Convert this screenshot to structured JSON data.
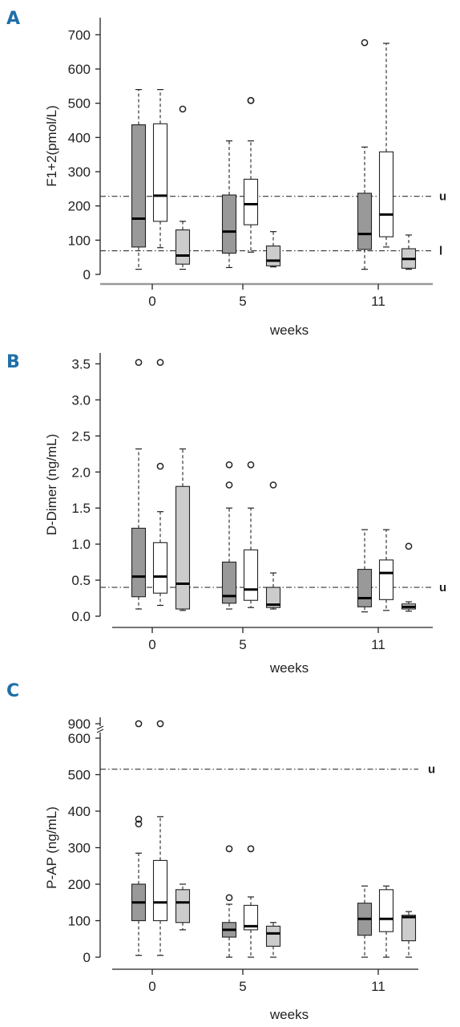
{
  "chart_data": [
    {
      "type": "box",
      "panel_label": "A",
      "xlabel": "weeks",
      "ylabel": "F1+2(pmol/L)",
      "categories": [
        "0",
        "5",
        "11"
      ],
      "ylim": [
        0,
        750
      ],
      "yticks": [
        0,
        100,
        200,
        300,
        400,
        500,
        600,
        700
      ],
      "reference_lines": [
        {
          "label": "u",
          "value": 228,
          "style": "dash-dot"
        },
        {
          "label": "l",
          "value": 69,
          "style": "dash-dot"
        }
      ],
      "series": [
        {
          "fill": "#999999",
          "boxes": [
            {
              "whislo": 15,
              "q1": 80,
              "med": 163,
              "q3": 437,
              "whishi": 540,
              "fliers": []
            },
            {
              "whislo": 20,
              "q1": 62,
              "med": 125,
              "q3": 232,
              "whishi": 390,
              "fliers": []
            },
            {
              "whislo": 15,
              "q1": 73,
              "med": 118,
              "q3": 237,
              "whishi": 372,
              "fliers": [
                677
              ]
            }
          ]
        },
        {
          "fill": "#ffffff",
          "boxes": [
            {
              "whislo": 78,
              "q1": 155,
              "med": 230,
              "q3": 440,
              "whishi": 540,
              "fliers": []
            },
            {
              "whislo": 65,
              "q1": 145,
              "med": 205,
              "q3": 278,
              "whishi": 390,
              "fliers": [
                508,
                508
              ]
            },
            {
              "whislo": 80,
              "q1": 110,
              "med": 175,
              "q3": 358,
              "whishi": 675,
              "fliers": []
            }
          ]
        },
        {
          "fill": "#cccccc",
          "boxes": [
            {
              "whislo": 15,
              "q1": 30,
              "med": 55,
              "q3": 130,
              "whishi": 155,
              "fliers": [
                483
              ]
            },
            {
              "whislo": 22,
              "q1": 25,
              "med": 40,
              "q3": 83,
              "whishi": 125,
              "fliers": []
            },
            {
              "whislo": 15,
              "q1": 18,
              "med": 45,
              "q3": 75,
              "whishi": 115,
              "fliers": []
            }
          ]
        }
      ]
    },
    {
      "type": "box",
      "panel_label": "B",
      "xlabel": "weeks",
      "ylabel": "D-Dimer (ng/mL)",
      "categories": [
        "0",
        "5",
        "11"
      ],
      "ylim": [
        0,
        3.65
      ],
      "yticks": [
        "0.0",
        "0.5",
        "1.0",
        "1.5",
        "2.0",
        "2.5",
        "3.0",
        "3.5"
      ],
      "reference_lines": [
        {
          "label": "u",
          "value": 0.4,
          "style": "dash-dot"
        }
      ],
      "series": [
        {
          "fill": "#999999",
          "boxes": [
            {
              "whislo": 0.1,
              "q1": 0.27,
              "med": 0.55,
              "q3": 1.22,
              "whishi": 2.32,
              "fliers": [
                3.52
              ]
            },
            {
              "whislo": 0.1,
              "q1": 0.18,
              "med": 0.28,
              "q3": 0.75,
              "whishi": 1.5,
              "fliers": [
                1.82,
                2.1
              ]
            },
            {
              "whislo": 0.06,
              "q1": 0.13,
              "med": 0.25,
              "q3": 0.65,
              "whishi": 1.2,
              "fliers": []
            }
          ]
        },
        {
          "fill": "#ffffff",
          "boxes": [
            {
              "whislo": 0.15,
              "q1": 0.32,
              "med": 0.55,
              "q3": 1.02,
              "whishi": 1.45,
              "fliers": [
                2.08,
                3.52
              ]
            },
            {
              "whislo": 0.12,
              "q1": 0.22,
              "med": 0.37,
              "q3": 0.92,
              "whishi": 1.5,
              "fliers": [
                2.1
              ]
            },
            {
              "whislo": 0.08,
              "q1": 0.23,
              "med": 0.6,
              "q3": 0.78,
              "whishi": 1.2,
              "fliers": []
            }
          ]
        },
        {
          "fill": "#cccccc",
          "boxes": [
            {
              "whislo": 0.08,
              "q1": 0.1,
              "med": 0.45,
              "q3": 1.8,
              "whishi": 2.32,
              "fliers": []
            },
            {
              "whislo": 0.1,
              "q1": 0.12,
              "med": 0.16,
              "q3": 0.4,
              "whishi": 0.6,
              "fliers": [
                1.82
              ]
            },
            {
              "whislo": 0.07,
              "q1": 0.1,
              "med": 0.13,
              "q3": 0.17,
              "whishi": 0.2,
              "fliers": [
                0.97
              ]
            }
          ]
        }
      ]
    },
    {
      "type": "box",
      "panel_label": "C",
      "xlabel": "weeks",
      "ylabel": "P-AP (ng/mL)",
      "categories": [
        "0",
        "5",
        "11"
      ],
      "ylim": [
        0,
        600
      ],
      "yticks": [
        0,
        100,
        200,
        300,
        400,
        500,
        600
      ],
      "axis_break": {
        "below": 600,
        "above_tick": 900
      },
      "reference_lines": [
        {
          "label": "u",
          "value": 515,
          "style": "dash-dot"
        }
      ],
      "series": [
        {
          "fill": "#999999",
          "boxes": [
            {
              "whislo": 5,
              "q1": 100,
              "med": 150,
              "q3": 200,
              "whishi": 285,
              "fliers": [
                365,
                378,
                920
              ]
            },
            {
              "whislo": 0,
              "q1": 55,
              "med": 75,
              "q3": 95,
              "whishi": 145,
              "fliers": [
                163,
                297
              ]
            },
            {
              "whislo": 0,
              "q1": 60,
              "med": 105,
              "q3": 148,
              "whishi": 195,
              "fliers": []
            }
          ]
        },
        {
          "fill": "#ffffff",
          "boxes": [
            {
              "whislo": 5,
              "q1": 100,
              "med": 150,
              "q3": 265,
              "whishi": 385,
              "fliers": [
                920
              ]
            },
            {
              "whislo": 0,
              "q1": 75,
              "med": 85,
              "q3": 142,
              "whishi": 165,
              "fliers": [
                297
              ]
            },
            {
              "whislo": 0,
              "q1": 70,
              "med": 105,
              "q3": 185,
              "whishi": 195,
              "fliers": []
            }
          ]
        },
        {
          "fill": "#cccccc",
          "boxes": [
            {
              "whislo": 75,
              "q1": 95,
              "med": 150,
              "q3": 185,
              "whishi": 200,
              "fliers": []
            },
            {
              "whislo": 0,
              "q1": 30,
              "med": 65,
              "q3": 85,
              "whishi": 95,
              "fliers": []
            },
            {
              "whislo": 0,
              "q1": 45,
              "med": 110,
              "q3": 115,
              "whishi": 125,
              "fliers": []
            }
          ]
        }
      ]
    }
  ]
}
